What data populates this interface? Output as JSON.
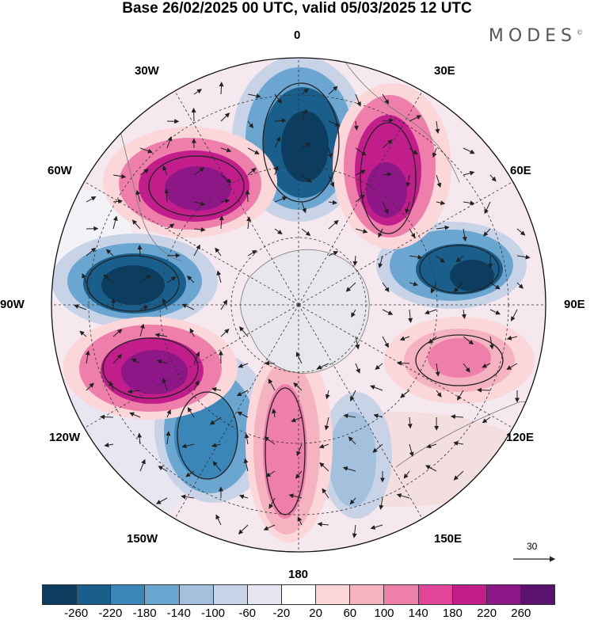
{
  "title": "Base 26/02/2025 00 UTC, valid 05/03/2025 12 UTC",
  "logo": "MODES",
  "logo_mark": "©",
  "map": {
    "projection": "south-polar-stereographic",
    "field": "anomaly shading with wind vectors",
    "longitude_labels": {
      "top": "0",
      "top_right": "30E",
      "right_upper": "60E",
      "right": "90E",
      "right_lower": "120E",
      "bottom_right": "150E",
      "bottom": "180",
      "bottom_left": "150W",
      "left_lower": "120W",
      "left": "90W",
      "left_upper": "60W",
      "top_left": "30W"
    },
    "vector_scale": "30"
  },
  "colorbar": {
    "colors": [
      "#0c3d5e",
      "#1a5e8c",
      "#3a86b8",
      "#6aa6cf",
      "#a3c1dd",
      "#c8d3e8",
      "#e6e6f2",
      "#ffffff",
      "#fbd7da",
      "#f5b2c0",
      "#ee7fab",
      "#e2449a",
      "#c11e8c",
      "#8d1786",
      "#5a126e"
    ],
    "tick_labels": [
      "-260",
      "-220",
      "-180",
      "-140",
      "-100",
      "-60",
      "-20",
      "20",
      "60",
      "100",
      "140",
      "180",
      "220",
      "260"
    ]
  }
}
